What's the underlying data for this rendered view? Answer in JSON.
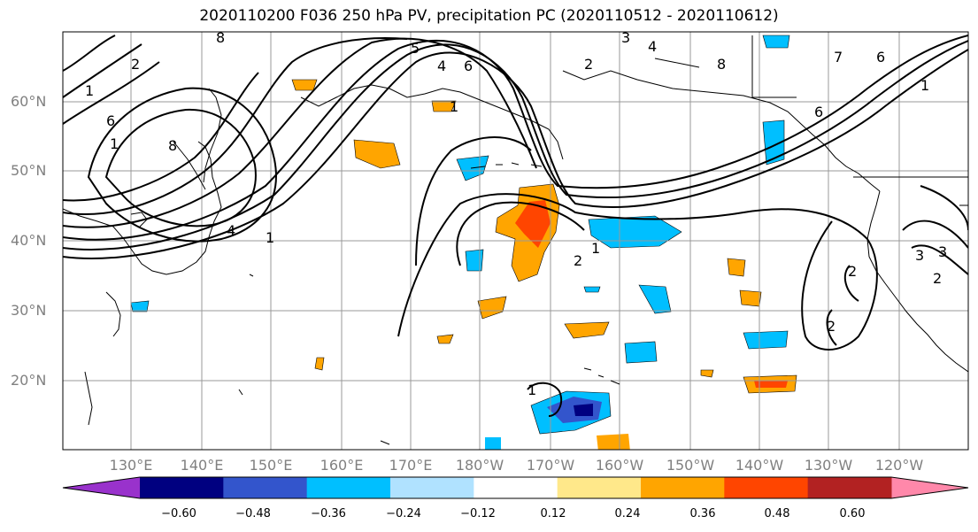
{
  "title": "2020110200 F036 250 hPa PV, precipitation PC (2020110512 - 2020110612)",
  "lat_labels": [
    "60°N",
    "50°N",
    "40°N",
    "30°N",
    "20°N"
  ],
  "lon_labels": [
    "130°E",
    "140°E",
    "150°E",
    "160°E",
    "170°E",
    "180°W",
    "170°W",
    "160°W",
    "150°W",
    "140°W",
    "130°W",
    "120°W"
  ],
  "colorbar": {
    "ticks": [
      "−0.60",
      "−0.48",
      "−0.36",
      "−0.24",
      "−0.12",
      "0.12",
      "0.24",
      "0.36",
      "0.48",
      "0.60"
    ],
    "colors": [
      "#9932cc",
      "#000080",
      "#3355cc",
      "#00bfff",
      "#b0e2ff",
      "#ffffff",
      "#ffe88a",
      "#ffa500",
      "#ff4500",
      "#b22222",
      "#ff88aa"
    ]
  },
  "contour_labels": [
    "8",
    "8",
    "5",
    "4",
    "3",
    "2",
    "6",
    "1",
    "4",
    "8",
    "7",
    "6",
    "6",
    "1",
    "2",
    "1",
    "6",
    "1",
    "1",
    "2",
    "3",
    "2",
    "2",
    "1",
    "1",
    "2",
    "4",
    "3"
  ]
}
